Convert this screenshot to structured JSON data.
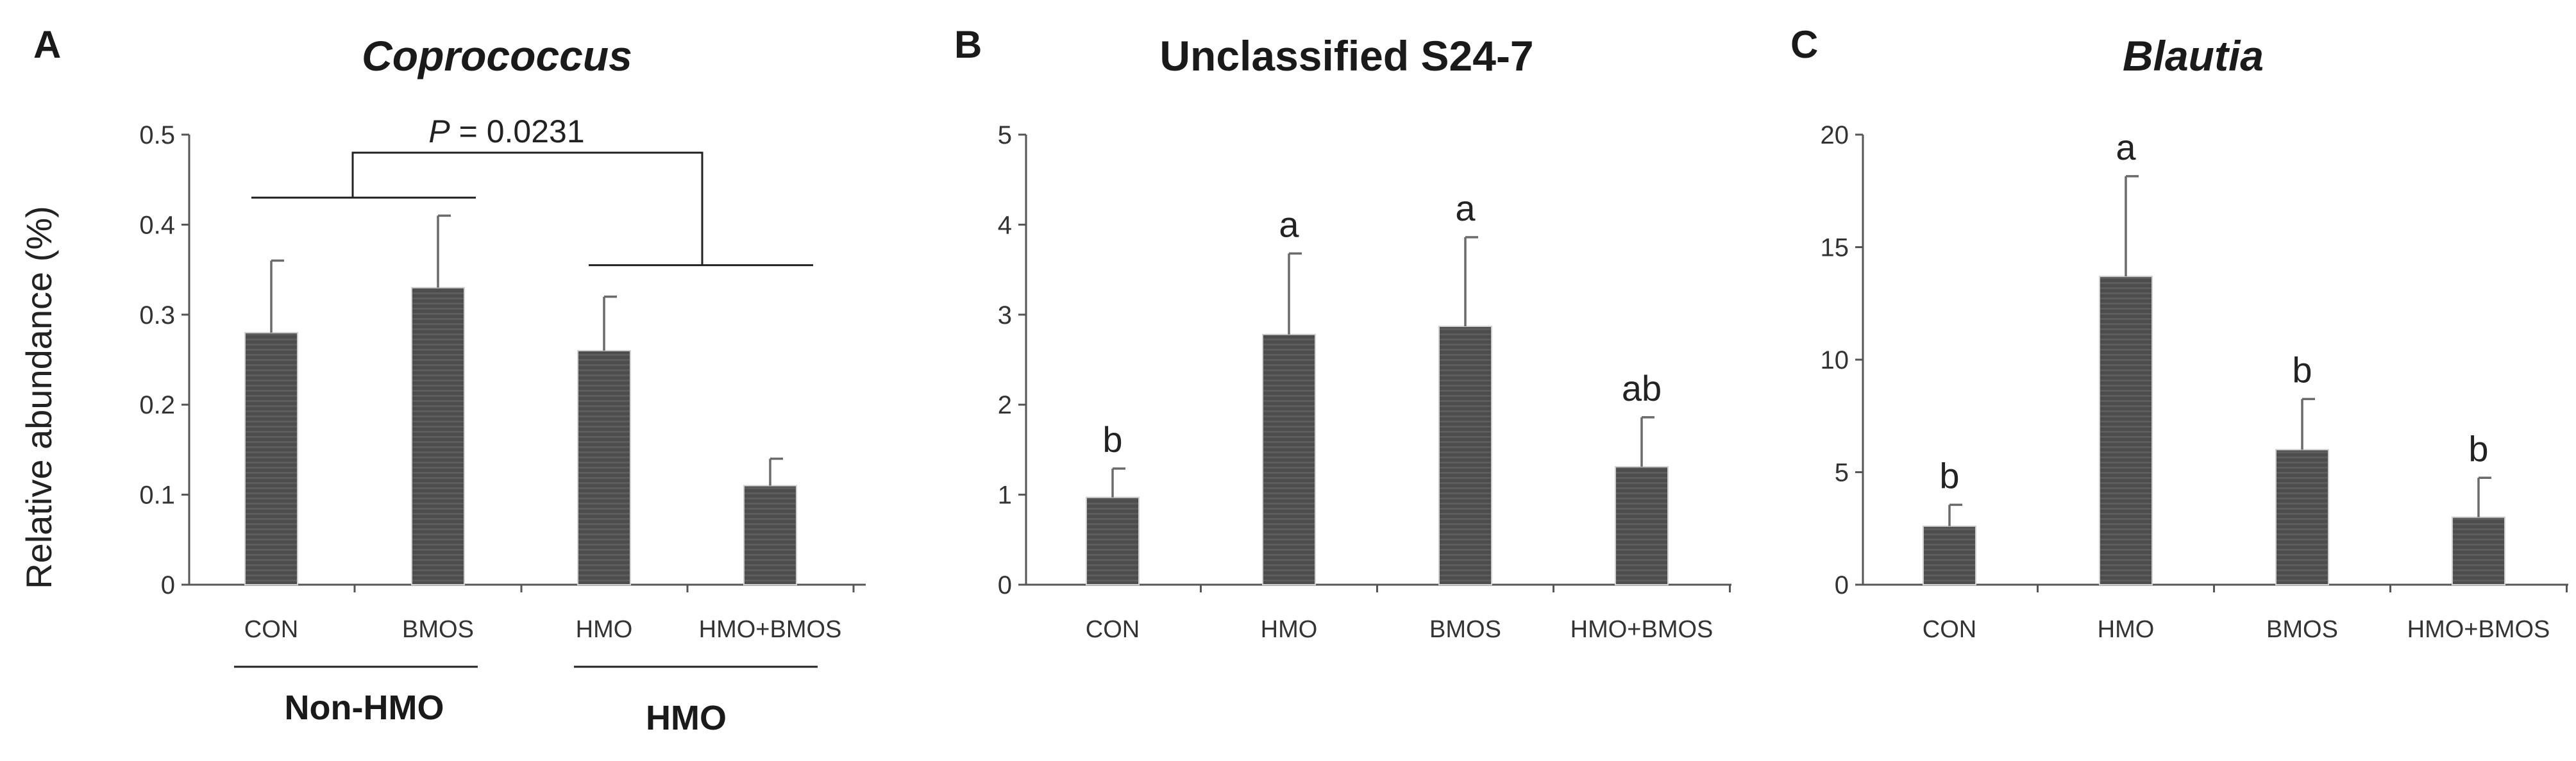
{
  "colors": {
    "bar": "#4d4d4d",
    "bar_stripe": "#5c5c5c",
    "axis": "#555555",
    "error_bar": "#6a6a6a"
  },
  "y_axis_label": "Relative abundance (%)",
  "chart_data": [
    {
      "type": "bar",
      "panel": "A",
      "title": "Coprococcus",
      "title_italic": true,
      "categories": [
        "CON",
        "BMOS",
        "HMO",
        "HMO+BMOS"
      ],
      "values": [
        0.28,
        0.33,
        0.26,
        0.11
      ],
      "errors": [
        0.08,
        0.08,
        0.06,
        0.03
      ],
      "letters": [
        "",
        "",
        "",
        ""
      ],
      "ylim": [
        0,
        0.5
      ],
      "yticks": [
        0,
        0.1,
        0.2,
        0.3,
        0.4,
        0.5
      ],
      "ytick_labels": [
        "0",
        "0.1",
        "0.2",
        "0.3",
        "0.4",
        "0.5"
      ],
      "ylabel": "Relative abundance (%)",
      "groups": [
        {
          "label": "Non-HMO",
          "members": [
            0,
            1
          ]
        },
        {
          "label": "HMO",
          "members": [
            2,
            3
          ]
        }
      ],
      "comparison": {
        "p_label": "P",
        "p_value": " = 0.0231",
        "level_left": 0.43,
        "level_right": 0.355,
        "level_top": 0.48
      }
    },
    {
      "type": "bar",
      "panel": "B",
      "title": "Unclassified S24-7",
      "title_italic": false,
      "categories": [
        "CON",
        "HMO",
        "BMOS",
        "HMO+BMOS"
      ],
      "values": [
        0.97,
        2.78,
        2.87,
        1.31
      ],
      "errors": [
        0.32,
        0.9,
        0.99,
        0.55
      ],
      "letters": [
        "b",
        "a",
        "a",
        "ab"
      ],
      "ylim": [
        0,
        5
      ],
      "yticks": [
        0,
        1,
        2,
        3,
        4,
        5
      ],
      "ytick_labels": [
        "0",
        "1",
        "2",
        "3",
        "4",
        "5"
      ]
    },
    {
      "type": "bar",
      "panel": "C",
      "title": "Blautia",
      "title_italic": true,
      "categories": [
        "CON",
        "HMO",
        "BMOS",
        "HMO+BMOS"
      ],
      "values": [
        2.6,
        13.7,
        6.0,
        3.0
      ],
      "errors": [
        0.95,
        4.45,
        2.25,
        1.75
      ],
      "letters": [
        "b",
        "a",
        "b",
        "b"
      ],
      "ylim": [
        0,
        20
      ],
      "yticks": [
        0,
        5,
        10,
        15,
        20
      ],
      "ytick_labels": [
        "0",
        "5",
        "10",
        "15",
        "20"
      ]
    }
  ]
}
